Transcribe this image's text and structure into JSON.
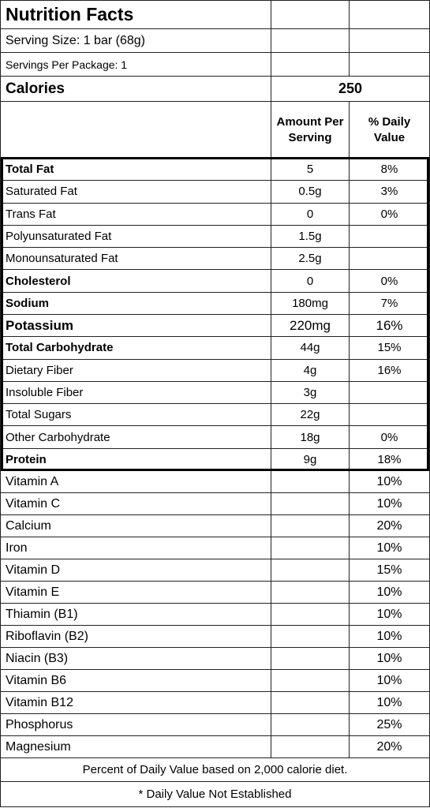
{
  "header": {
    "title": "Nutrition Facts",
    "serving_size": "Serving Size: 1 bar (68g)",
    "servings_per_package": "Servings Per Package: 1"
  },
  "calories": {
    "label": "Calories",
    "value": "250"
  },
  "columns": {
    "amount": "Amount Per Serving",
    "daily_value": "% Daily Value"
  },
  "nutrients": [
    {
      "name": "Total Fat",
      "amount": "5",
      "dv": "8%",
      "bold": true
    },
    {
      "name": "Saturated Fat",
      "amount": "0.5g",
      "dv": "3%",
      "bold": false
    },
    {
      "name": "Trans Fat",
      "amount": "0",
      "dv": "0%",
      "bold": false
    },
    {
      "name": "Polyunsaturated Fat",
      "amount": "1.5g",
      "dv": null,
      "bold": false
    },
    {
      "name": "Monounsaturated Fat",
      "amount": "2.5g",
      "dv": null,
      "bold": false
    },
    {
      "name": "Cholesterol",
      "amount": "0",
      "dv": "0%",
      "bold": true
    },
    {
      "name": "Sodium",
      "amount": "180mg",
      "dv": "7%",
      "bold": true
    },
    {
      "name": "Potassium",
      "amount": "220mg",
      "dv": "16%",
      "bold": true
    },
    {
      "name": "Total Carbohydrate",
      "amount": "44g",
      "dv": "15%",
      "bold": true
    },
    {
      "name": "Dietary Fiber",
      "amount": "4g",
      "dv": "16%",
      "bold": false
    },
    {
      "name": "Insoluble Fiber",
      "amount": "3g",
      "dv": null,
      "bold": false
    },
    {
      "name": "Total Sugars",
      "amount": "22g",
      "dv": null,
      "bold": false
    },
    {
      "name": "Other Carbohydrate",
      "amount": "18g",
      "dv": "0%",
      "bold": false
    },
    {
      "name": "Protein",
      "amount": "9g",
      "dv": "18%",
      "bold": true
    }
  ],
  "vitamins": [
    {
      "name": "Vitamin A",
      "dv": "10%"
    },
    {
      "name": "Vitamin C",
      "dv": "10%"
    },
    {
      "name": "Calcium",
      "dv": "20%"
    },
    {
      "name": "Iron",
      "dv": "10%"
    },
    {
      "name": "Vitamin D",
      "dv": "15%"
    },
    {
      "name": "Vitamin E",
      "dv": "10%"
    },
    {
      "name": "Thiamin (B1)",
      "dv": "10%"
    },
    {
      "name": "Riboflavin (B2)",
      "dv": "10%"
    },
    {
      "name": "Niacin (B3)",
      "dv": "10%"
    },
    {
      "name": "Vitamin B6",
      "dv": "10%"
    },
    {
      "name": "Vitamin B12",
      "dv": "10%"
    },
    {
      "name": "Phosphorus",
      "dv": "25%"
    },
    {
      "name": "Magnesium",
      "dv": "20%"
    }
  ],
  "footer": {
    "note": "Percent of Daily Value based on 2,000 calorie diet.",
    "asterisk": "* Daily Value Not Established"
  }
}
